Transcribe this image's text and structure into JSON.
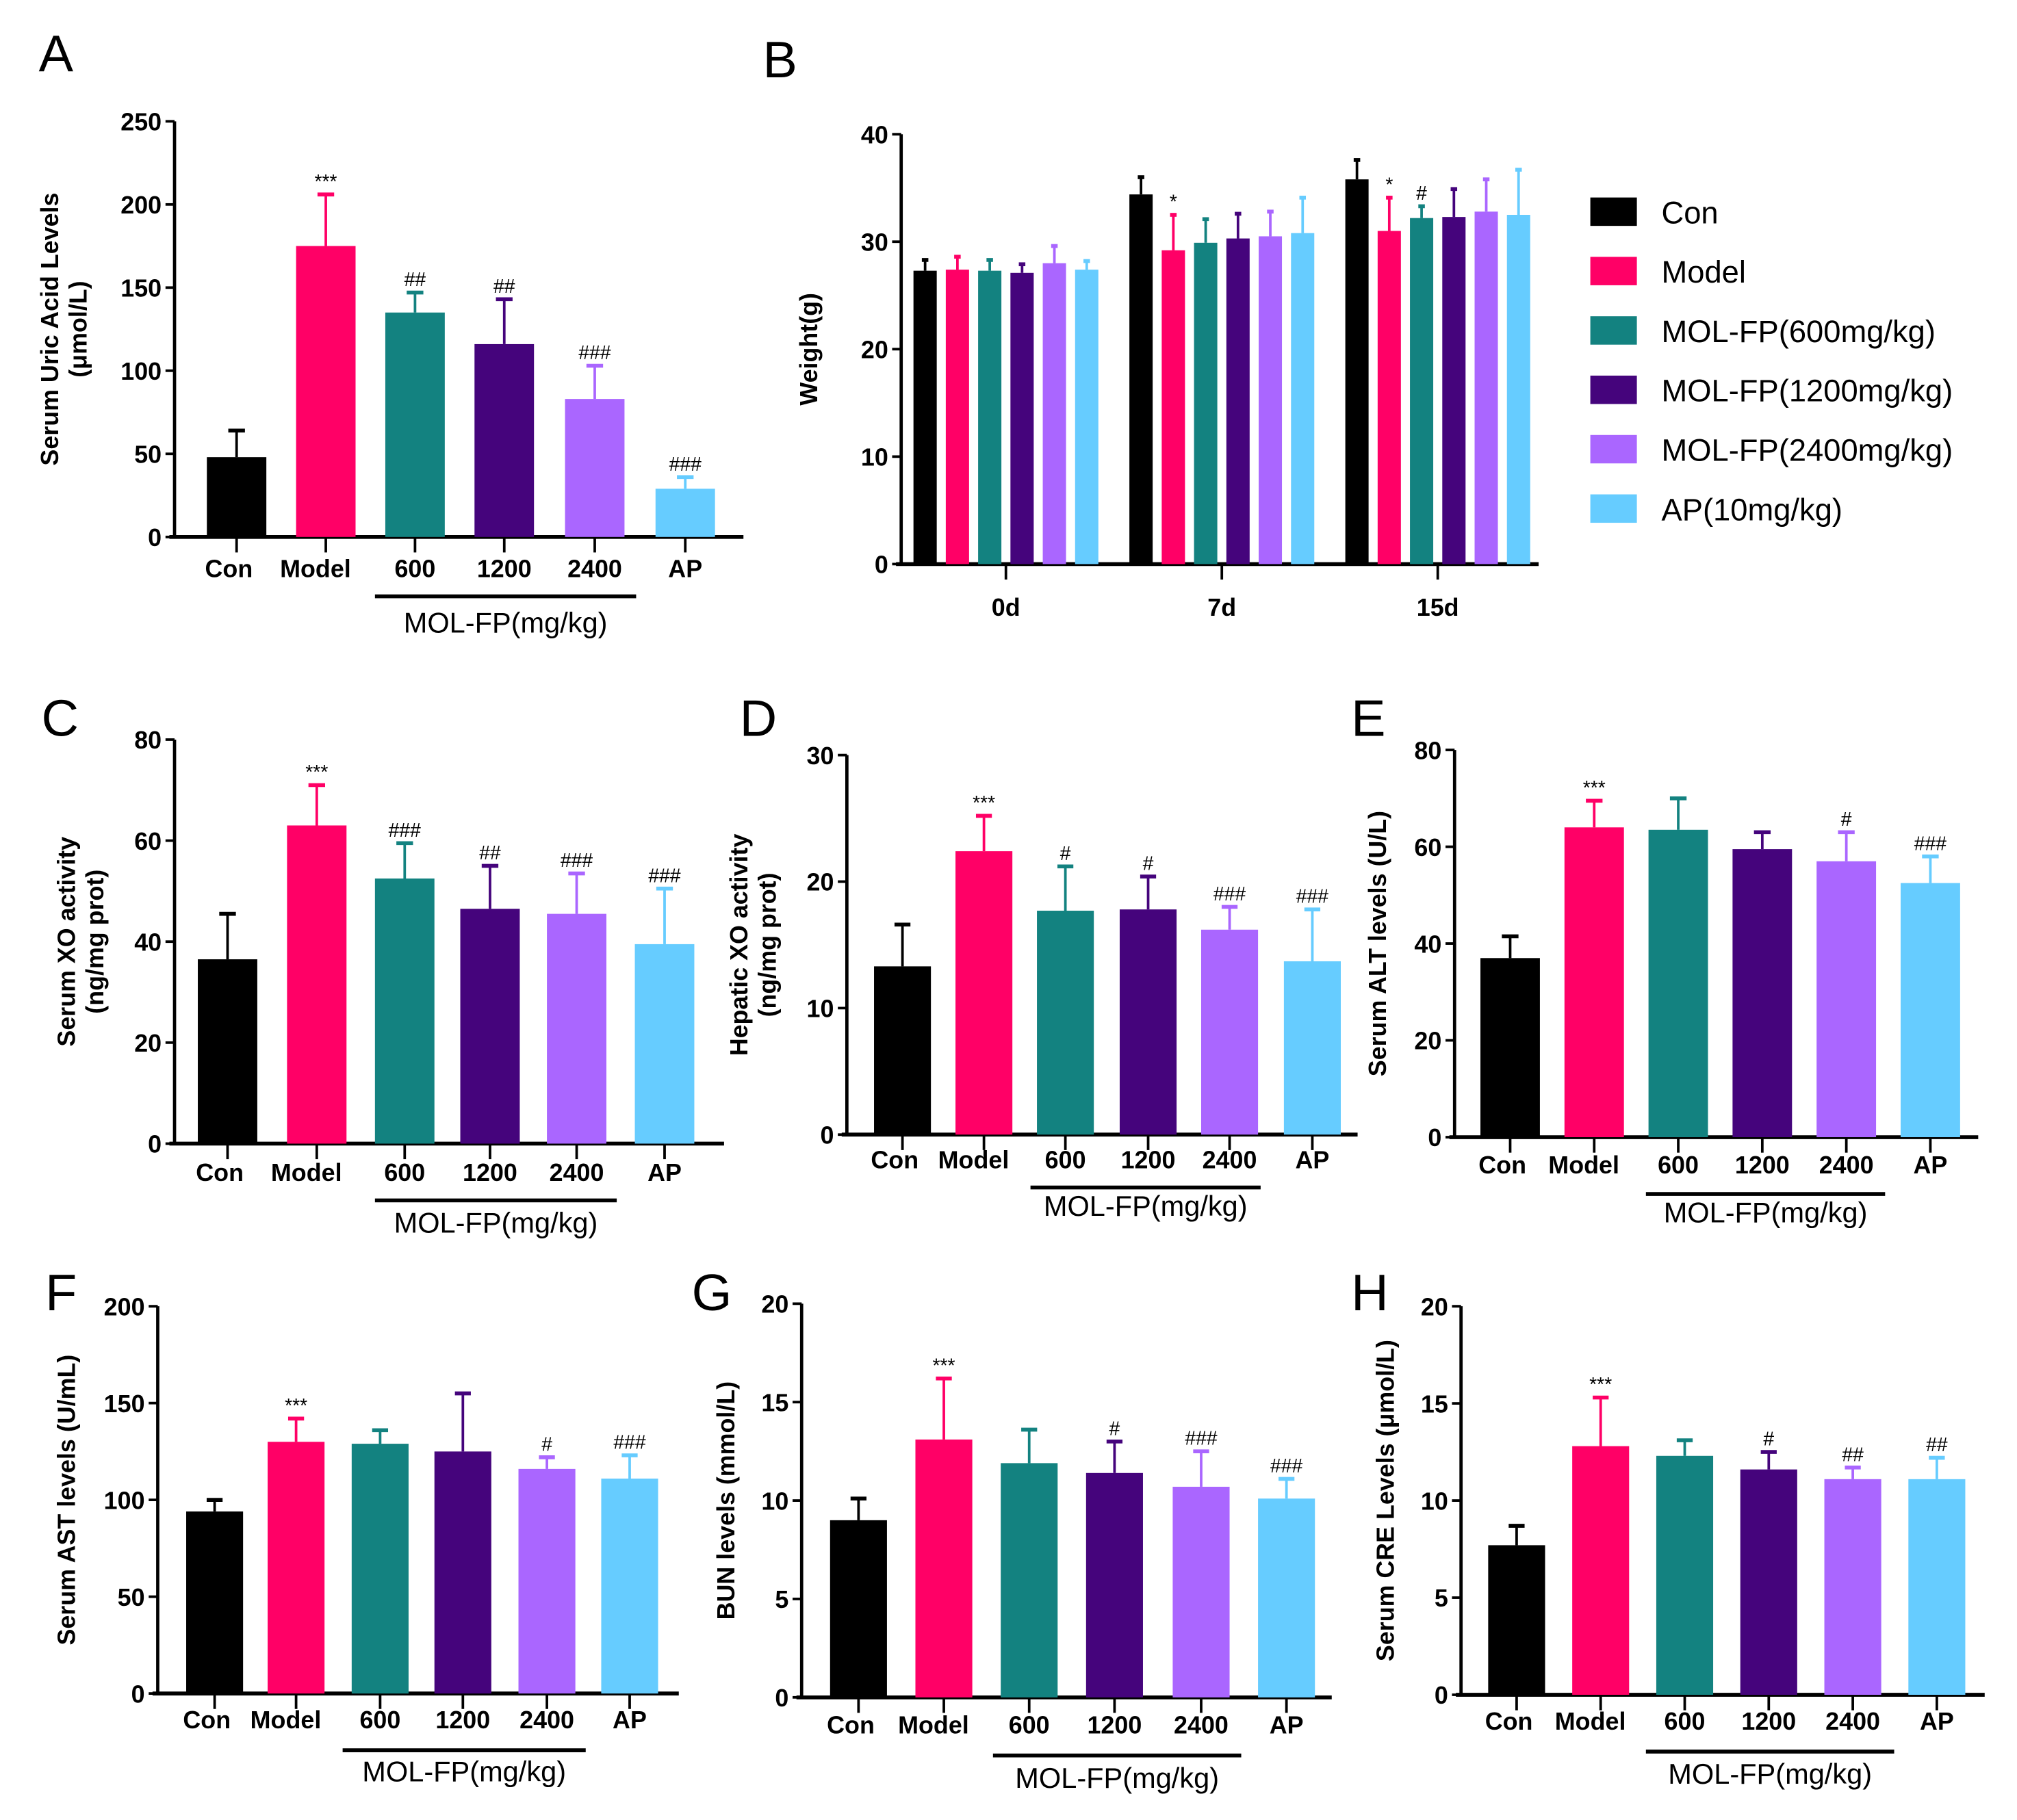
{
  "colors": [
    "#000000",
    "#ff0066",
    "#138280",
    "#45047c",
    "#aa66ff",
    "#66ccff"
  ],
  "legend": [
    "Con",
    "Model",
    "MOL-FP(600mg/kg)",
    "MOL-FP(1200mg/kg)",
    "MOL-FP(2400mg/kg)",
    "AP(10mg/kg)"
  ],
  "chart_data": [
    {
      "letter": "A",
      "type": "bar",
      "ylabel": [
        "Serum Uric Acid Levels",
        "(μmol/L)"
      ],
      "categories": [
        "Con",
        "Model",
        "600",
        "1200",
        "2400",
        "AP"
      ],
      "group_label": "MOL-FP(mg/kg)",
      "values": [
        48,
        175,
        135,
        116,
        83,
        29
      ],
      "errors": [
        16,
        31,
        12,
        27,
        20,
        7
      ],
      "annotations": [
        "",
        "***",
        "##",
        "##",
        "###",
        "###"
      ],
      "ylim": [
        0,
        250
      ],
      "yticks": [
        0,
        50,
        100,
        150,
        200,
        250
      ]
    },
    {
      "letter": "B",
      "type": "bar",
      "ylabel": [
        "Weight(g)"
      ],
      "categories": [
        "0d",
        "7d",
        "15d"
      ],
      "series": [
        {
          "name": "Con",
          "values": [
            27.3,
            34.4,
            35.8
          ],
          "errors": [
            1.0,
            1.6,
            1.8
          ],
          "annotations": [
            "",
            "",
            ""
          ]
        },
        {
          "name": "Model",
          "values": [
            27.4,
            29.2,
            31.0
          ],
          "errors": [
            1.2,
            3.3,
            3.1
          ],
          "annotations": [
            "",
            "*",
            "*"
          ]
        },
        {
          "name": "MOL-FP(600mg/kg)",
          "values": [
            27.3,
            29.9,
            32.2
          ],
          "errors": [
            1.0,
            2.2,
            1.1
          ],
          "annotations": [
            "",
            "",
            "#"
          ]
        },
        {
          "name": "MOL-FP(1200mg/kg)",
          "values": [
            27.1,
            30.3,
            32.3
          ],
          "errors": [
            0.8,
            2.3,
            2.6
          ],
          "annotations": [
            "",
            "",
            ""
          ]
        },
        {
          "name": "MOL-FP(2400mg/kg)",
          "values": [
            28.0,
            30.5,
            32.8
          ],
          "errors": [
            1.6,
            2.3,
            3.0
          ],
          "annotations": [
            "",
            "",
            ""
          ]
        },
        {
          "name": "AP(10mg/kg)",
          "values": [
            27.4,
            30.8,
            32.5
          ],
          "errors": [
            0.8,
            3.3,
            4.2
          ],
          "annotations": [
            "",
            "",
            ""
          ]
        }
      ],
      "ylim": [
        0,
        40
      ],
      "yticks": [
        0,
        10,
        20,
        30,
        40
      ],
      "legend_position": "right"
    },
    {
      "letter": "C",
      "type": "bar",
      "ylabel": [
        "Serum XO activity",
        "(ng/mg prot)"
      ],
      "categories": [
        "Con",
        "Model",
        "600",
        "1200",
        "2400",
        "AP"
      ],
      "group_label": "MOL-FP(mg/kg)",
      "values": [
        36.5,
        63,
        52.5,
        46.5,
        45.5,
        39.5
      ],
      "errors": [
        9,
        8,
        7,
        8.5,
        8,
        11
      ],
      "annotations": [
        "",
        "***",
        "###",
        "##",
        "###",
        "###"
      ],
      "ylim": [
        0,
        80
      ],
      "yticks": [
        0,
        20,
        40,
        60,
        80
      ]
    },
    {
      "letter": "D",
      "type": "bar",
      "ylabel": [
        "Hepatic XO activity",
        "(ng/mg prot)"
      ],
      "categories": [
        "Con",
        "Model",
        "600",
        "1200",
        "2400",
        "AP"
      ],
      "group_label": "MOL-FP(mg/kg)",
      "values": [
        13.3,
        22.4,
        17.7,
        17.8,
        16.2,
        13.7
      ],
      "errors": [
        3.3,
        2.8,
        3.5,
        2.6,
        1.8,
        4.1
      ],
      "annotations": [
        "",
        "***",
        "#",
        "#",
        "###",
        "###"
      ],
      "ylim": [
        0,
        30
      ],
      "yticks": [
        0,
        10,
        20,
        30
      ]
    },
    {
      "letter": "E",
      "type": "bar",
      "ylabel": [
        "Serum ALT levels (U/L)"
      ],
      "categories": [
        "Con",
        "Model",
        "600",
        "1200",
        "2400",
        "AP"
      ],
      "group_label": "MOL-FP(mg/kg)",
      "values": [
        37,
        64,
        63.5,
        59.5,
        57,
        52.5
      ],
      "errors": [
        4.5,
        5.5,
        6.5,
        3.5,
        6,
        5.5
      ],
      "annotations": [
        "",
        "***",
        "",
        "",
        "#",
        "###"
      ],
      "ylim": [
        0,
        80
      ],
      "yticks": [
        0,
        20,
        40,
        60,
        80
      ]
    },
    {
      "letter": "F",
      "type": "bar",
      "ylabel": [
        "Serum AST levels (U/mL)"
      ],
      "categories": [
        "Con",
        "Model",
        "600",
        "1200",
        "2400",
        "AP"
      ],
      "group_label": "MOL-FP(mg/kg)",
      "values": [
        94,
        130,
        129,
        125,
        116,
        111
      ],
      "errors": [
        6,
        12,
        7,
        30,
        6,
        12
      ],
      "annotations": [
        "",
        "***",
        "",
        "",
        "#",
        "###"
      ],
      "ylim": [
        0,
        200
      ],
      "yticks": [
        0,
        50,
        100,
        150,
        200
      ]
    },
    {
      "letter": "G",
      "type": "bar",
      "ylabel": [
        "BUN levels (mmol/L)"
      ],
      "categories": [
        "Con",
        "Model",
        "600",
        "1200",
        "2400",
        "AP"
      ],
      "group_label": "MOL-FP(mg/kg)",
      "values": [
        9,
        13.1,
        11.9,
        11.4,
        10.7,
        10.1
      ],
      "errors": [
        1.1,
        3.1,
        1.7,
        1.6,
        1.8,
        1.0
      ],
      "annotations": [
        "",
        "***",
        "",
        "#",
        "###",
        "###"
      ],
      "ylim": [
        0,
        20
      ],
      "yticks": [
        0,
        5,
        10,
        15,
        20
      ]
    },
    {
      "letter": "H",
      "type": "bar",
      "ylabel": [
        "Serum CRE Levels (μmol/L)"
      ],
      "categories": [
        "Con",
        "Model",
        "600",
        "1200",
        "2400",
        "AP"
      ],
      "group_label": "MOL-FP(mg/kg)",
      "values": [
        7.7,
        12.8,
        12.3,
        11.6,
        11.1,
        11.1
      ],
      "errors": [
        1.0,
        2.5,
        0.8,
        0.9,
        0.6,
        1.1
      ],
      "annotations": [
        "",
        "***",
        "",
        "#",
        "##",
        "##"
      ],
      "ylim": [
        0,
        20
      ],
      "yticks": [
        0,
        5,
        10,
        15,
        20
      ]
    }
  ]
}
